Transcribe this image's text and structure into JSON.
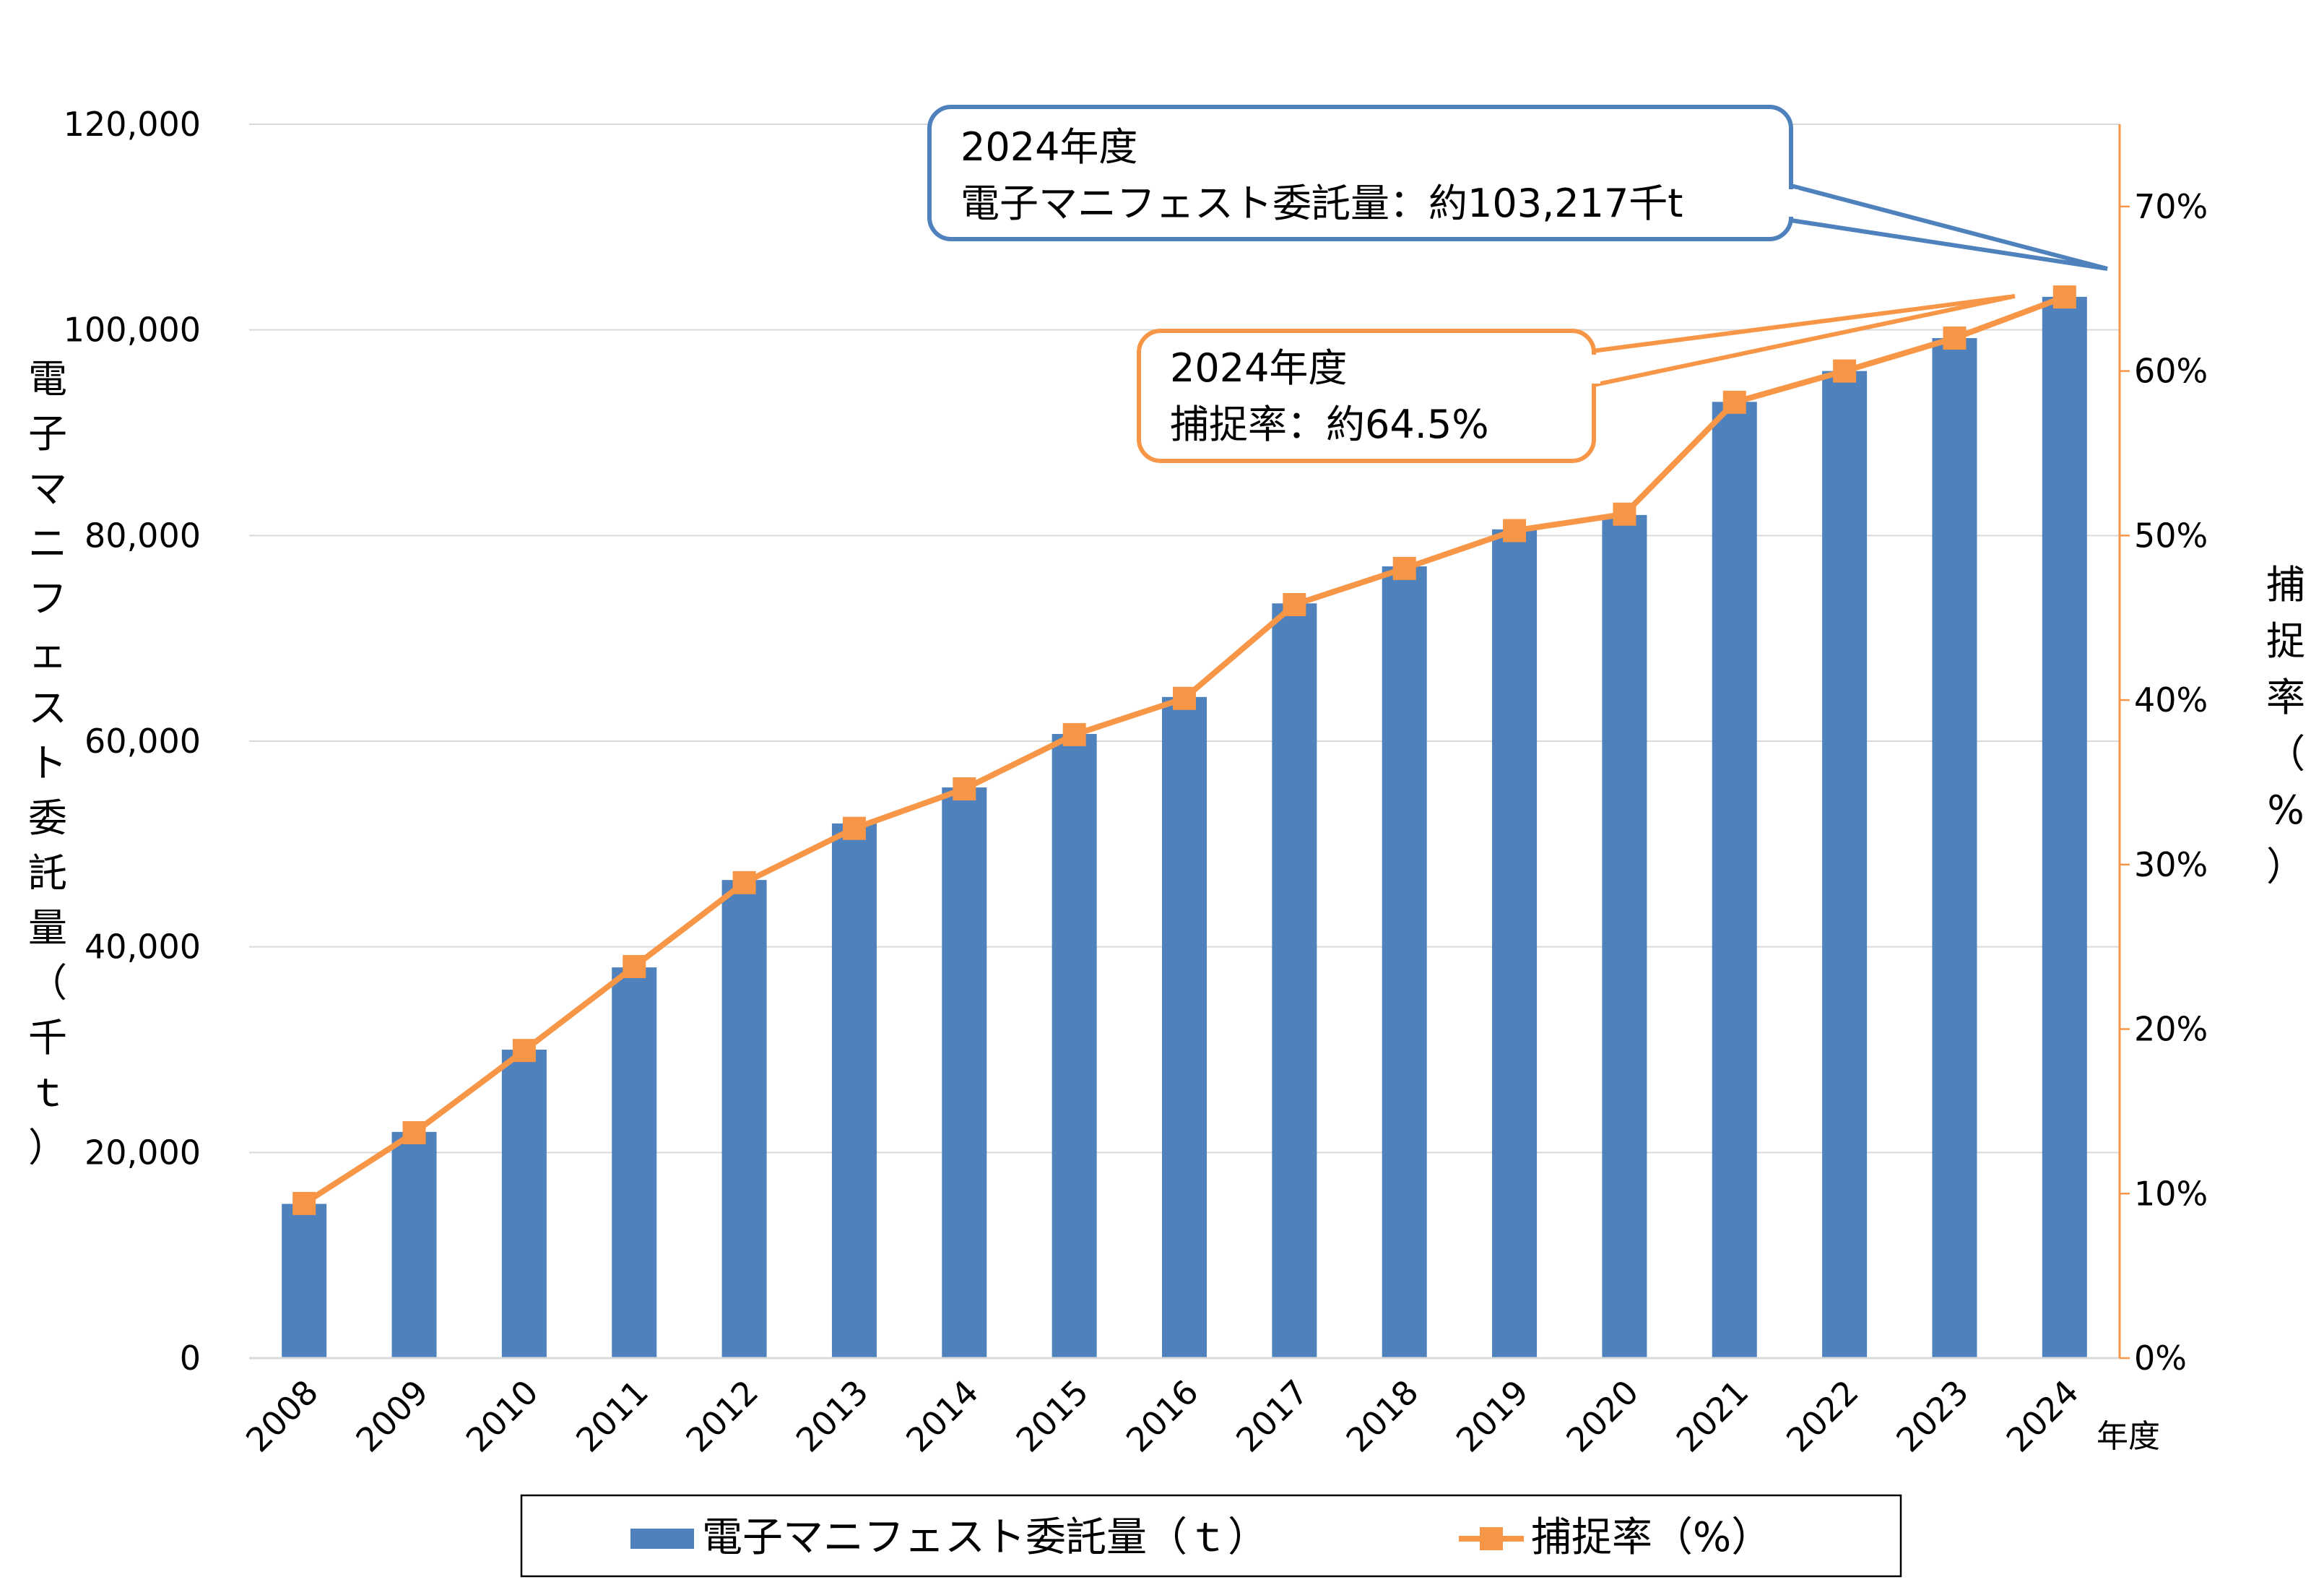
{
  "colors": {
    "bar": "#4f81bd",
    "line": "#f79646",
    "callout_blue": "#4f81bd",
    "callout_orange": "#f79646",
    "grid": "#d9d9d9"
  },
  "chart_data": {
    "type": "bar",
    "categories": [
      "2008",
      "2009",
      "2010",
      "2011",
      "2012",
      "2013",
      "2014",
      "2015",
      "2016",
      "2017",
      "2018",
      "2019",
      "2020",
      "2021",
      "2022",
      "2023",
      "2024"
    ],
    "x_unit_label": "年度",
    "series": [
      {
        "name": "電子マニフェスト委託量（ｔ）",
        "type": "bar",
        "axis": "left",
        "values": [
          15000,
          22000,
          30000,
          38000,
          46500,
          52000,
          55500,
          60700,
          64300,
          73400,
          77000,
          80600,
          82000,
          93000,
          96000,
          99200,
          103217
        ]
      },
      {
        "name": "捕捉率（%）",
        "type": "line",
        "axis": "right",
        "values": [
          9.4,
          13.7,
          18.7,
          23.8,
          28.9,
          32.2,
          34.6,
          37.9,
          40.1,
          45.8,
          48.0,
          50.3,
          51.3,
          58.1,
          60.0,
          62.0,
          64.5
        ]
      }
    ],
    "y_left": {
      "label": "電子マニフェスト委託量（千ｔ）",
      "ylim": [
        0,
        120000
      ],
      "ticks": [
        "0",
        "20,000",
        "40,000",
        "60,000",
        "80,000",
        "100,000",
        "120,000"
      ]
    },
    "y_right": {
      "label": "捕捉率（%）",
      "ylim": [
        0,
        75
      ],
      "ticks": [
        "0%",
        "10%",
        "20%",
        "30%",
        "40%",
        "50%",
        "60%",
        "70%"
      ]
    },
    "grid": true,
    "legend_position": "bottom",
    "annotations": [
      {
        "lines": [
          "2024年度",
          "電子マニフェスト委託量：約103,217千t"
        ],
        "target_series": 0
      },
      {
        "lines": [
          "2024年度",
          "捕捉率：約64.5%"
        ],
        "target_series": 1
      }
    ]
  }
}
